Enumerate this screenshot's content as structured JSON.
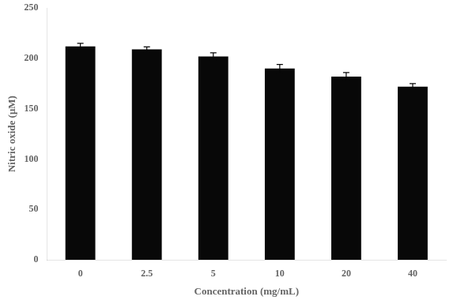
{
  "chart_data": {
    "type": "bar",
    "categories": [
      "0",
      "2.5",
      "5",
      "10",
      "20",
      "40"
    ],
    "values": [
      212,
      209,
      202,
      190,
      182,
      172
    ],
    "errors": [
      3,
      2.5,
      3.5,
      4,
      4,
      3
    ],
    "color": "#080808",
    "xlabel": "Concentration (mg/mL)",
    "ylabel": "Nitric oxide (μM)",
    "ylim": [
      0,
      250
    ],
    "yticks": [
      0,
      50,
      100,
      150,
      200,
      250
    ],
    "grid": false
  }
}
